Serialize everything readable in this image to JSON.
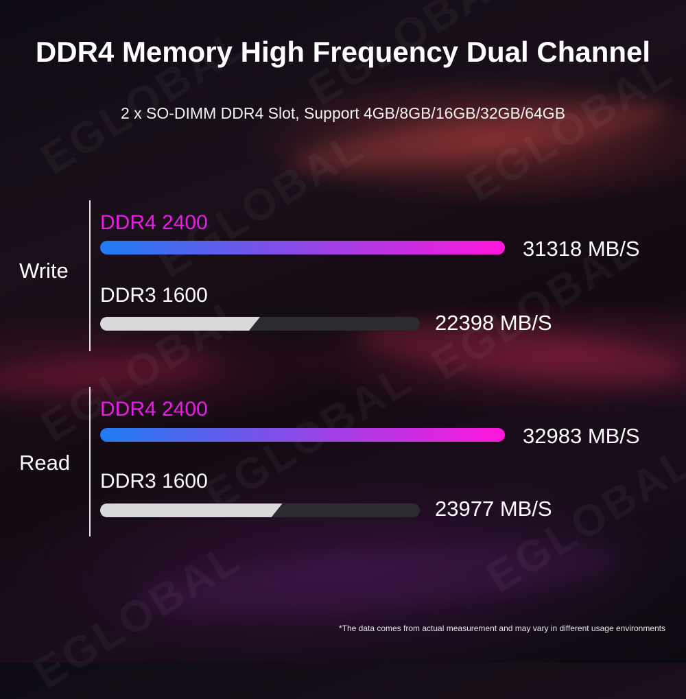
{
  "title": "DDR4 Memory High Frequency Dual Channel",
  "subtitle": "2 x SO-DIMM DDR4 Slot, Support 4GB/8GB/16GB/32GB/64GB",
  "watermark_text": "EGLOBAL",
  "footnote": "*The data comes from actual measurement and may vary in different usage environments",
  "colors": {
    "ddr4_label": "#e81ee8",
    "ddr4_gradient_start": "#1e7cf2",
    "ddr4_gradient_end": "#ff16dc",
    "ddr3_fill": "#d9d9dc",
    "ddr3_track": "#2c2b30"
  },
  "chart_data": {
    "type": "bar",
    "orientation": "horizontal",
    "unit": "MB/S",
    "groups": [
      {
        "label": "Write",
        "bars": [
          {
            "series": "DDR4 2400",
            "value": 31318,
            "value_label": "31318 MB/S"
          },
          {
            "series": "DDR3 1600",
            "value": 22398,
            "value_label": "22398 MB/S"
          }
        ]
      },
      {
        "label": "Read",
        "bars": [
          {
            "series": "DDR4 2400",
            "value": 32983,
            "value_label": "32983 MB/S"
          },
          {
            "series": "DDR3 1600",
            "value": 23977,
            "value_label": "23977 MB/S"
          }
        ]
      }
    ],
    "ddr3_fill_fraction": {
      "write": 0.5,
      "read": 0.57
    }
  }
}
